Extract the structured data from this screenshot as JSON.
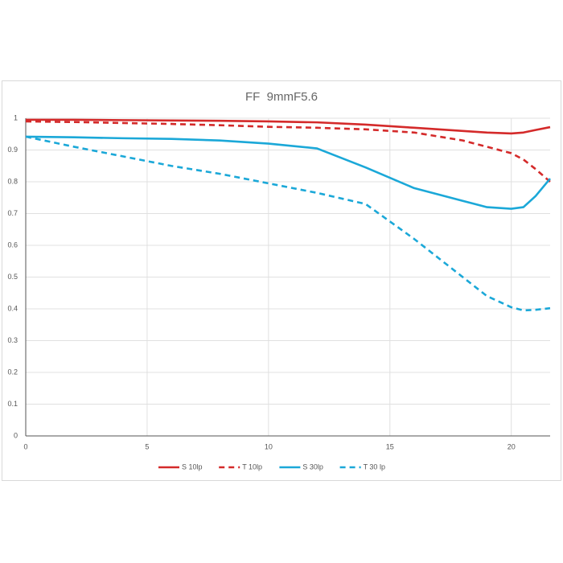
{
  "chart_data": {
    "type": "line",
    "title": "FF  9mmF5.6",
    "x": [
      0,
      2,
      4,
      6,
      8,
      10,
      12,
      14,
      16,
      18,
      19,
      20,
      20.5,
      21,
      21.6
    ],
    "series": [
      {
        "name": "S 10lp",
        "color": "#d42a2a",
        "dashed": false,
        "values": [
          0.995,
          0.995,
          0.994,
          0.993,
          0.992,
          0.99,
          0.987,
          0.98,
          0.97,
          0.96,
          0.955,
          0.952,
          0.955,
          0.963,
          0.972
        ]
      },
      {
        "name": "T 10lp",
        "color": "#d42a2a",
        "dashed": true,
        "values": [
          0.99,
          0.988,
          0.985,
          0.982,
          0.978,
          0.973,
          0.97,
          0.965,
          0.955,
          0.93,
          0.91,
          0.89,
          0.87,
          0.84,
          0.8
        ]
      },
      {
        "name": "S 30lp",
        "color": "#1ba8d8",
        "dashed": false,
        "values": [
          0.942,
          0.94,
          0.937,
          0.935,
          0.93,
          0.92,
          0.905,
          0.845,
          0.78,
          0.74,
          0.72,
          0.715,
          0.72,
          0.755,
          0.81
        ]
      },
      {
        "name": "T 30 lp",
        "color": "#1ba8d8",
        "dashed": true,
        "values": [
          0.942,
          0.91,
          0.88,
          0.85,
          0.825,
          0.795,
          0.765,
          0.73,
          0.62,
          0.5,
          0.44,
          0.405,
          0.395,
          0.397,
          0.402
        ]
      }
    ],
    "xlim": [
      0,
      21.6
    ],
    "xticks": [
      0,
      5,
      10,
      15,
      20
    ],
    "ylim": [
      0,
      1
    ],
    "yticks": [
      0,
      0.1,
      0.2,
      0.3,
      0.4,
      0.5,
      0.6,
      0.7,
      0.8,
      0.9,
      1
    ],
    "grid": true,
    "legend": "bottom"
  }
}
